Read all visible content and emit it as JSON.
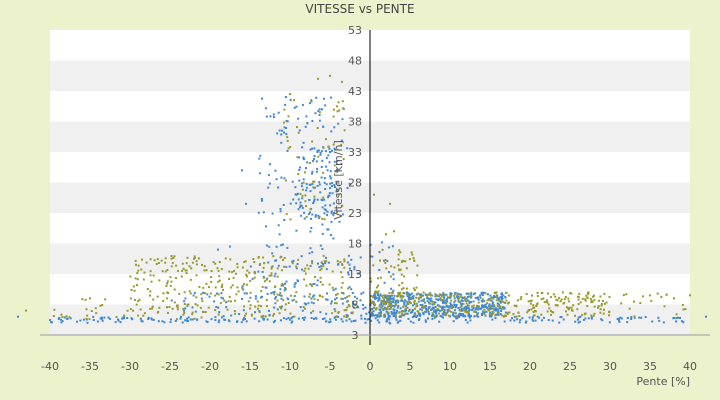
{
  "chart_data": {
    "type": "scatter",
    "title": "VITESSE vs PENTE",
    "xlabel": "Pente [%]",
    "ylabel": "Vitesse [km/h]",
    "xlim": [
      -40,
      40
    ],
    "ylim": [
      3,
      53
    ],
    "x_ticks": [
      -40,
      -35,
      -30,
      -25,
      -20,
      -15,
      -10,
      -5,
      0,
      5,
      10,
      15,
      20,
      25,
      30,
      35,
      40
    ],
    "y_ticks": [
      3,
      8,
      13,
      18,
      23,
      28,
      33,
      38,
      43,
      48,
      53
    ],
    "x_tick_labels": [
      "-40",
      "-35",
      "-30",
      "-25",
      "-20",
      "-15",
      "-10",
      "-5",
      "0",
      "5",
      "10",
      "15",
      "20",
      "25",
      "30",
      "35",
      "40"
    ],
    "y_tick_labels": [
      "3",
      "8",
      "13",
      "18",
      "23",
      "28",
      "33",
      "38",
      "43",
      "48",
      "53"
    ],
    "grid": "horizontal alternating bands",
    "legend": "none",
    "colors": {
      "background": "#ecf2cc",
      "plot_band_light": "#ffffff",
      "plot_band_dark": "#f0f0f0",
      "axis": "#000000",
      "series_blue": "#3f88d3",
      "series_olive": "#9a9a2a"
    },
    "series": [
      {
        "color": "#3f88d3",
        "clusters": [
          {
            "x": [
              -14,
              -2.5
            ],
            "y": [
              14,
              42
            ],
            "n": 150
          },
          {
            "x": [
              -9,
              -4
            ],
            "y": [
              22,
              34
            ],
            "n": 90
          },
          {
            "x": [
              -16,
              -1
            ],
            "y": [
              8,
              16
            ],
            "n": 90
          },
          {
            "x": [
              0,
              17
            ],
            "y": [
              6,
              10
            ],
            "n": 560
          },
          {
            "x": [
              -40,
              40
            ],
            "y": [
              5,
              6
            ],
            "n": 220
          },
          {
            "x": [
              -25,
              0
            ],
            "y": [
              5,
              10
            ],
            "n": 110
          },
          {
            "x": [
              0,
              3
            ],
            "y": [
              4,
              20
            ],
            "n": 25
          }
        ],
        "points": [
          [
            -10.5,
            42
          ],
          [
            -16,
            30
          ],
          [
            -7.5,
            41
          ],
          [
            -15.5,
            24.5
          ],
          [
            -11,
            36.5
          ],
          [
            -8.3,
            34.5
          ],
          [
            -6,
            40
          ],
          [
            -19,
            17
          ],
          [
            -17.5,
            17.5
          ],
          [
            -13.5,
            25
          ],
          [
            -12.5,
            31
          ],
          [
            -5,
            33
          ],
          [
            0.5,
            6.2
          ],
          [
            0.5,
            7.5
          ],
          [
            -44,
            6
          ],
          [
            42,
            6
          ]
        ]
      },
      {
        "color": "#9a9a2a",
        "clusters": [
          {
            "x": [
              -11,
              -3
            ],
            "y": [
              20,
              42
            ],
            "n": 60
          },
          {
            "x": [
              -30,
              -2
            ],
            "y": [
              6,
              16
            ],
            "n": 320
          },
          {
            "x": [
              0,
              30
            ],
            "y": [
              6,
              10
            ],
            "n": 300
          },
          {
            "x": [
              0,
              6
            ],
            "y": [
              8,
              17
            ],
            "n": 70
          },
          {
            "x": [
              20,
              40
            ],
            "y": [
              6,
              10
            ],
            "n": 40
          },
          {
            "x": [
              -40,
              -20
            ],
            "y": [
              5.5,
              9
            ],
            "n": 40
          }
        ],
        "points": [
          [
            -6.5,
            45
          ],
          [
            -5,
            45.5
          ],
          [
            -3.5,
            44.5
          ],
          [
            -10,
            42.5
          ],
          [
            -9.5,
            41.5
          ],
          [
            2,
            19.5
          ],
          [
            2.5,
            24.5
          ],
          [
            3,
            20
          ],
          [
            0.5,
            26
          ],
          [
            35,
            9.5
          ],
          [
            40,
            9.5
          ],
          [
            38,
            9
          ],
          [
            -35,
            9
          ],
          [
            -43,
            7
          ],
          [
            -24,
            13.5
          ],
          [
            -21,
            14.5
          ],
          [
            -17,
            13.5
          ]
        ]
      }
    ]
  }
}
